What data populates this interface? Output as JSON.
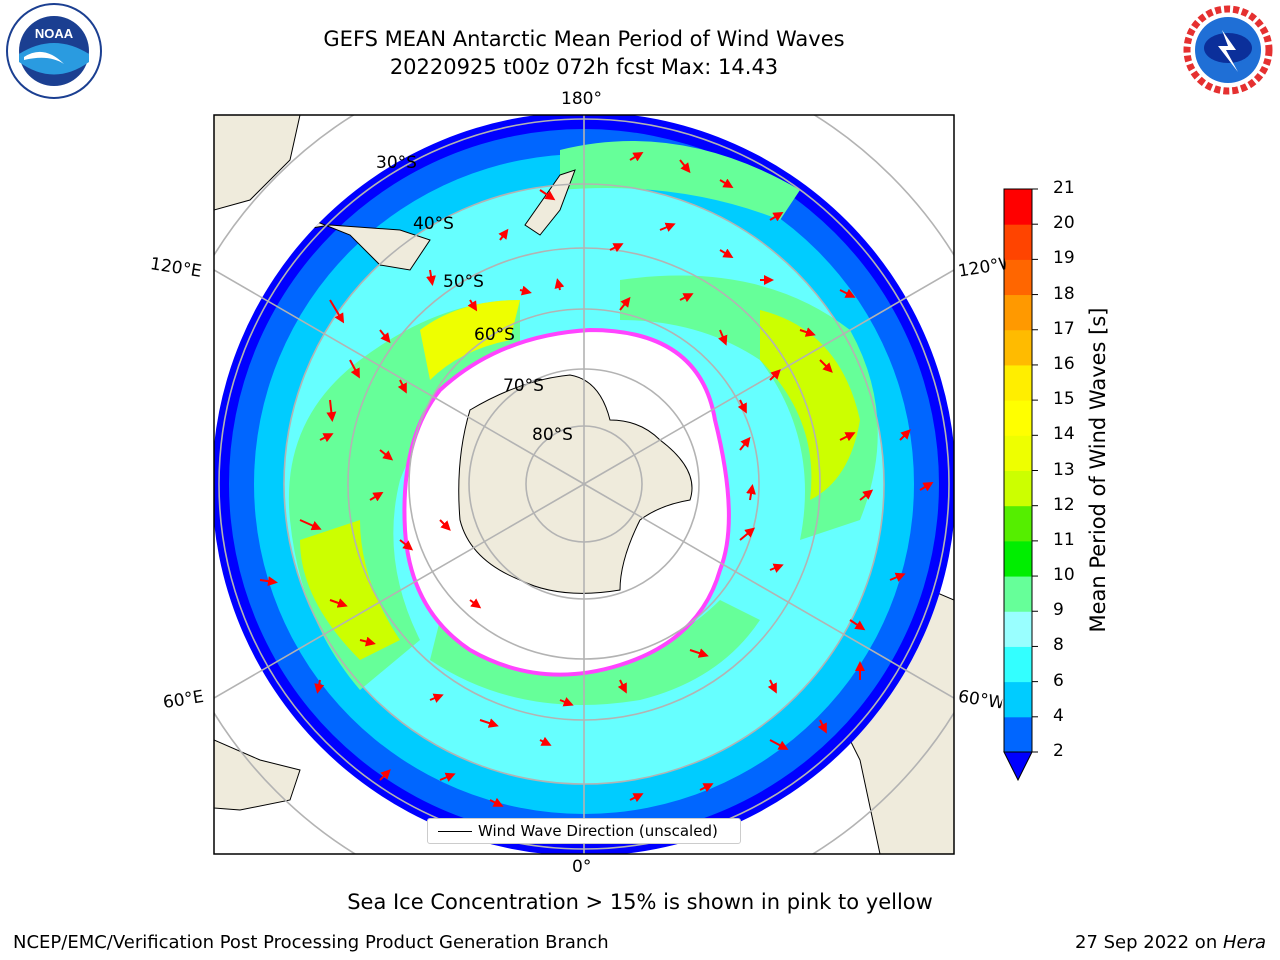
{
  "title": {
    "line1": "GEFS MEAN Antarctic Mean Period of Wind Waves",
    "line2": "20220925 t00z 072h fcst   Max: 14.43"
  },
  "logos": {
    "left": "NOAA",
    "left_ring_text": "NATIONAL OCEANIC AND ATMOSPHERIC ADMINISTRATION · U.S. DEPARTMENT OF COMMERCE",
    "right_ring_text": "NATIONAL WEATHER SERVICE"
  },
  "map": {
    "projection": "south-polar-stereographic",
    "longitude_labels": {
      "top": "180°",
      "bottom": "0°",
      "left_upper": "120°E",
      "left_lower": "60°E",
      "right_upper": "120°W",
      "right_lower": "60°W"
    },
    "latitude_labels": [
      "30°S",
      "40°S",
      "50°S",
      "60°S",
      "70°S",
      "80°S"
    ],
    "colors": {
      "land": "#efebdc",
      "ice_edge": "#ff44ff",
      "grid": "#b3b3b3",
      "arrow": "#ff0000"
    },
    "legend": "Wind Wave Direction (unscaled)"
  },
  "colorbar": {
    "label": "Mean Period of Wind Waves [s]",
    "ticks": [
      "2",
      "4",
      "6",
      "8",
      "9",
      "10",
      "11",
      "12",
      "13",
      "14",
      "15",
      "16",
      "17",
      "18",
      "19",
      "20",
      "21"
    ],
    "bins": [
      {
        "from": 2,
        "to": 3,
        "color": "#0066ff"
      },
      {
        "from": 3,
        "to": 4,
        "color": "#0099ff"
      },
      {
        "from": 4,
        "to": 5,
        "color": "#00ccff"
      },
      {
        "from": 5,
        "to": 6,
        "color": "#00e5ff"
      },
      {
        "from": 6,
        "to": 7,
        "color": "#33ffff"
      },
      {
        "from": 7,
        "to": 8,
        "color": "#66ffff"
      },
      {
        "from": 8,
        "to": 9,
        "color": "#99ffff"
      },
      {
        "from": 9,
        "to": 10,
        "color": "#66ff99"
      },
      {
        "from": 10,
        "to": 11,
        "color": "#00ee00"
      },
      {
        "from": 11,
        "to": 12,
        "color": "#55ee00"
      },
      {
        "from": 12,
        "to": 13,
        "color": "#ccff00"
      },
      {
        "from": 13,
        "to": 14,
        "color": "#eeff00"
      },
      {
        "from": 14,
        "to": 15,
        "color": "#ffff00"
      },
      {
        "from": 15,
        "to": 16,
        "color": "#ffee00"
      },
      {
        "from": 16,
        "to": 17,
        "color": "#ffbb00"
      },
      {
        "from": 17,
        "to": 18,
        "color": "#ff9900"
      },
      {
        "from": 18,
        "to": 19,
        "color": "#ff6600"
      },
      {
        "from": 19,
        "to": 20,
        "color": "#ff4400"
      },
      {
        "from": 20,
        "to": 21,
        "color": "#ff0000"
      }
    ],
    "under_color": "#0000ff"
  },
  "note": "Sea Ice Concentration > 15% is shown in pink to yellow",
  "footer": {
    "left": "NCEP/EMC/Verification Post Processing Product Generation Branch",
    "right_date": "27 Sep 2022 on ",
    "right_host": "Hera"
  }
}
